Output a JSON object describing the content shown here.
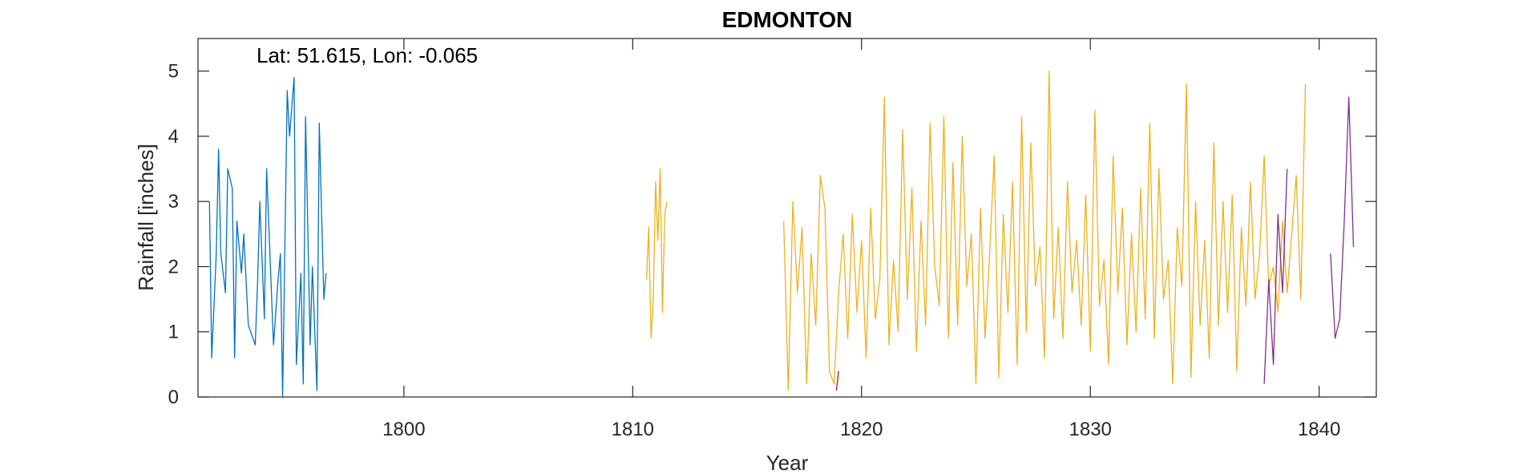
{
  "chart_data": {
    "type": "line",
    "title": "EDMONTON",
    "xlabel": "Year",
    "ylabel": "Rainfall [inches]",
    "annotation": "Lat: 51.615, Lon: -0.065",
    "xlim": [
      1791,
      1842.5
    ],
    "ylim": [
      0,
      5.5
    ],
    "xticks": [
      1800,
      1810,
      1820,
      1830,
      1840
    ],
    "yticks": [
      0,
      1,
      2,
      3,
      4,
      5
    ],
    "grid": false,
    "legend": "none",
    "series": [
      {
        "color": "#0072BD",
        "x": [
          1791.5,
          1791.6,
          1791.8,
          1791.9,
          1792.0,
          1792.2,
          1792.3,
          1792.5,
          1792.6,
          1792.7,
          1792.9,
          1793.0,
          1793.2,
          1793.3,
          1793.5,
          1793.6,
          1793.7,
          1793.9,
          1794.0,
          1794.2,
          1794.3,
          1794.5,
          1794.6,
          1794.7,
          1794.9,
          1795.0,
          1795.2,
          1795.3,
          1795.5,
          1795.6,
          1795.7,
          1795.9,
          1796.0,
          1796.2,
          1796.3,
          1796.5,
          1796.6
        ],
        "values": [
          3.0,
          0.6,
          2.2,
          3.8,
          2.2,
          1.6,
          3.5,
          3.2,
          0.6,
          2.7,
          1.9,
          2.5,
          1.1,
          1.0,
          0.8,
          1.7,
          3.0,
          1.2,
          3.5,
          1.7,
          0.8,
          1.8,
          2.2,
          0.0,
          4.7,
          4.0,
          4.9,
          0.5,
          1.9,
          0.2,
          4.3,
          0.8,
          2.0,
          0.1,
          4.2,
          1.5,
          1.9
        ]
      },
      {
        "color": "#EDB120",
        "x": [
          1810.6,
          1810.7,
          1810.8,
          1810.9,
          1811.0,
          1811.1,
          1811.2,
          1811.3,
          1811.4,
          1811.5
        ],
        "values": [
          1.8,
          2.6,
          0.9,
          1.5,
          3.3,
          2.4,
          3.5,
          1.3,
          2.8,
          3.0
        ]
      },
      {
        "color": "#EDB120",
        "x": [
          1816.6,
          1816.8,
          1817.0,
          1817.2,
          1817.4,
          1817.6,
          1817.8,
          1818.0,
          1818.2,
          1818.4,
          1818.6,
          1818.8,
          1819.0,
          1819.2,
          1819.4,
          1819.6,
          1819.8,
          1820.0,
          1820.2,
          1820.4,
          1820.6,
          1820.8,
          1821.0,
          1821.2,
          1821.4,
          1821.6,
          1821.8,
          1822.0,
          1822.2,
          1822.4,
          1822.6,
          1822.8,
          1823.0,
          1823.2,
          1823.4,
          1823.6,
          1823.8,
          1824.0,
          1824.2,
          1824.4,
          1824.6,
          1824.8,
          1825.0,
          1825.2,
          1825.4,
          1825.6,
          1825.8,
          1826.0,
          1826.2,
          1826.4,
          1826.6,
          1826.8,
          1827.0,
          1827.2,
          1827.4,
          1827.6,
          1827.8,
          1828.0,
          1828.2,
          1828.4,
          1828.6,
          1828.8,
          1829.0,
          1829.2,
          1829.4,
          1829.6,
          1829.8,
          1830.0,
          1830.2,
          1830.4,
          1830.6,
          1830.8,
          1831.0,
          1831.2,
          1831.4,
          1831.6,
          1831.8,
          1832.0,
          1832.2,
          1832.4,
          1832.6,
          1832.8,
          1833.0,
          1833.2,
          1833.4,
          1833.6,
          1833.8,
          1834.0,
          1834.2,
          1834.4,
          1834.6,
          1834.8,
          1835.0,
          1835.2,
          1835.4,
          1835.6,
          1835.8,
          1836.0,
          1836.2,
          1836.4,
          1836.6,
          1836.8,
          1837.0,
          1837.2,
          1837.4,
          1837.6,
          1837.8,
          1838.0,
          1838.2,
          1838.4,
          1838.6,
          1838.8,
          1839.0,
          1839.2,
          1839.4
        ],
        "values": [
          2.7,
          0.1,
          3.0,
          1.6,
          2.6,
          0.2,
          2.2,
          1.1,
          3.4,
          2.9,
          0.4,
          0.2,
          1.6,
          2.5,
          0.9,
          2.8,
          1.3,
          2.4,
          0.6,
          2.9,
          1.2,
          1.8,
          4.6,
          0.8,
          2.1,
          1.0,
          4.1,
          1.5,
          3.2,
          0.7,
          2.7,
          1.1,
          4.2,
          2.0,
          1.4,
          4.3,
          0.9,
          3.6,
          1.1,
          4.0,
          1.7,
          2.5,
          0.2,
          2.9,
          0.9,
          2.2,
          3.7,
          0.3,
          2.8,
          1.3,
          3.3,
          0.5,
          4.3,
          1.0,
          3.9,
          1.7,
          2.3,
          0.6,
          5.0,
          1.2,
          2.6,
          0.9,
          3.3,
          1.6,
          2.4,
          1.1,
          3.1,
          0.7,
          4.4,
          1.4,
          2.1,
          0.5,
          3.7,
          1.6,
          2.9,
          0.8,
          2.5,
          1.0,
          3.2,
          1.2,
          4.2,
          0.9,
          3.5,
          1.5,
          2.1,
          0.2,
          2.6,
          1.7,
          4.8,
          0.3,
          3.0,
          1.1,
          2.4,
          0.6,
          3.9,
          1.1,
          3.0,
          1.3,
          3.1,
          0.4,
          2.6,
          1.4,
          3.3,
          1.5,
          2.2,
          3.7,
          1.7,
          2.0,
          1.3,
          2.7,
          1.6,
          2.5,
          3.4,
          1.5,
          4.8
        ]
      },
      {
        "color": "#7E2F8E",
        "x": [
          1837.6,
          1837.8,
          1838.0,
          1838.2,
          1838.4,
          1838.6
        ],
        "values": [
          0.2,
          1.8,
          0.5,
          2.8,
          1.6,
          3.5
        ]
      },
      {
        "color": "#7E2F8E",
        "x": [
          1840.5,
          1840.7,
          1840.9,
          1841.1,
          1841.3,
          1841.5
        ],
        "values": [
          2.2,
          0.9,
          1.2,
          2.7,
          4.6,
          2.3
        ]
      },
      {
        "color": "#A2142F",
        "x": [
          1818.9,
          1819.0
        ],
        "values": [
          0.1,
          0.4
        ]
      }
    ]
  }
}
